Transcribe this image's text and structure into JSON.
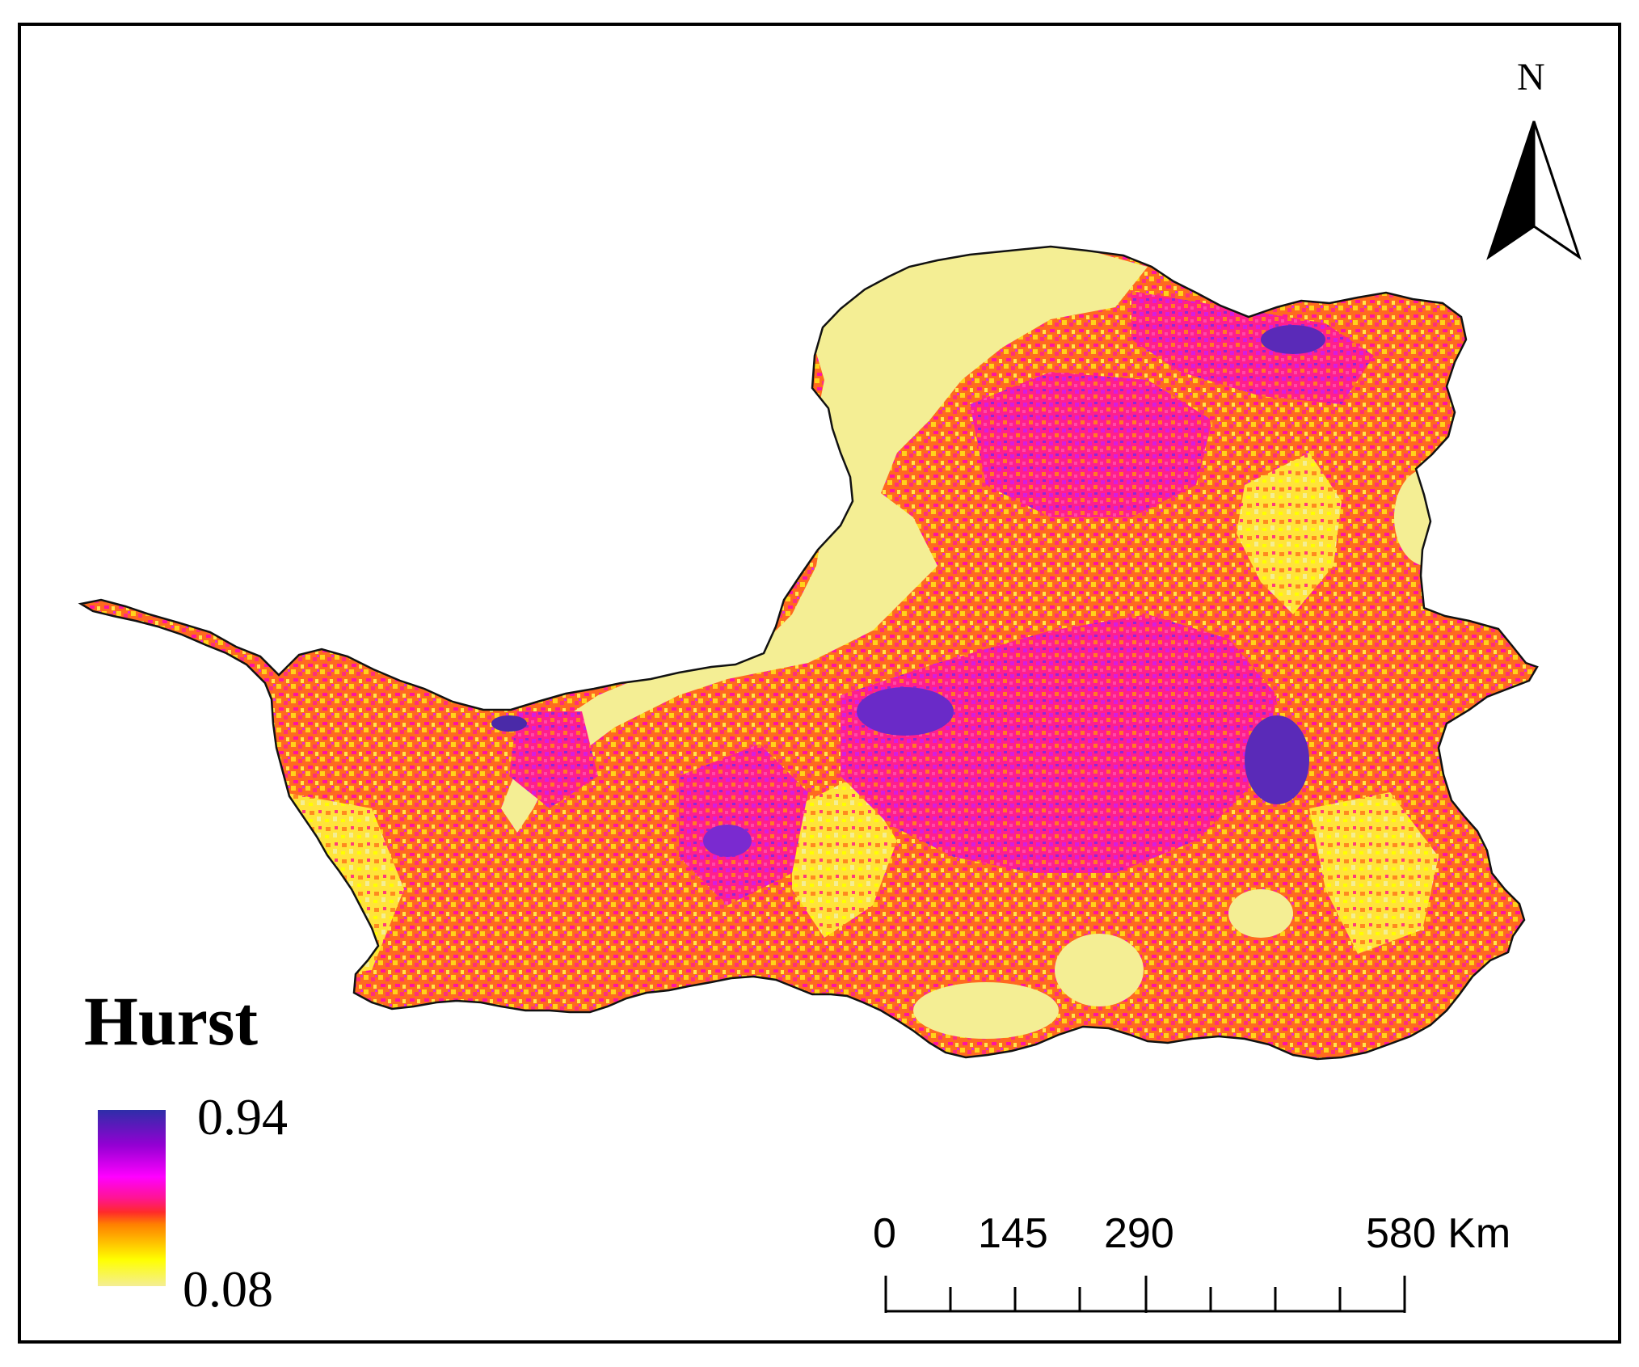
{
  "legend": {
    "title": "Hurst",
    "max_label": "0.94",
    "min_label": "0.08",
    "colors": [
      "#f4ee94",
      "#ffff00",
      "#ff8000",
      "#ff1493",
      "#ff00ff",
      "#9400d3",
      "#2e2ea8"
    ]
  },
  "north_arrow": {
    "label": "N"
  },
  "scale_bar": {
    "labels": [
      "0",
      "145",
      "290",
      "580 Km"
    ]
  },
  "palette": {
    "background_region": "#f4ee94",
    "outline": "#111111"
  }
}
